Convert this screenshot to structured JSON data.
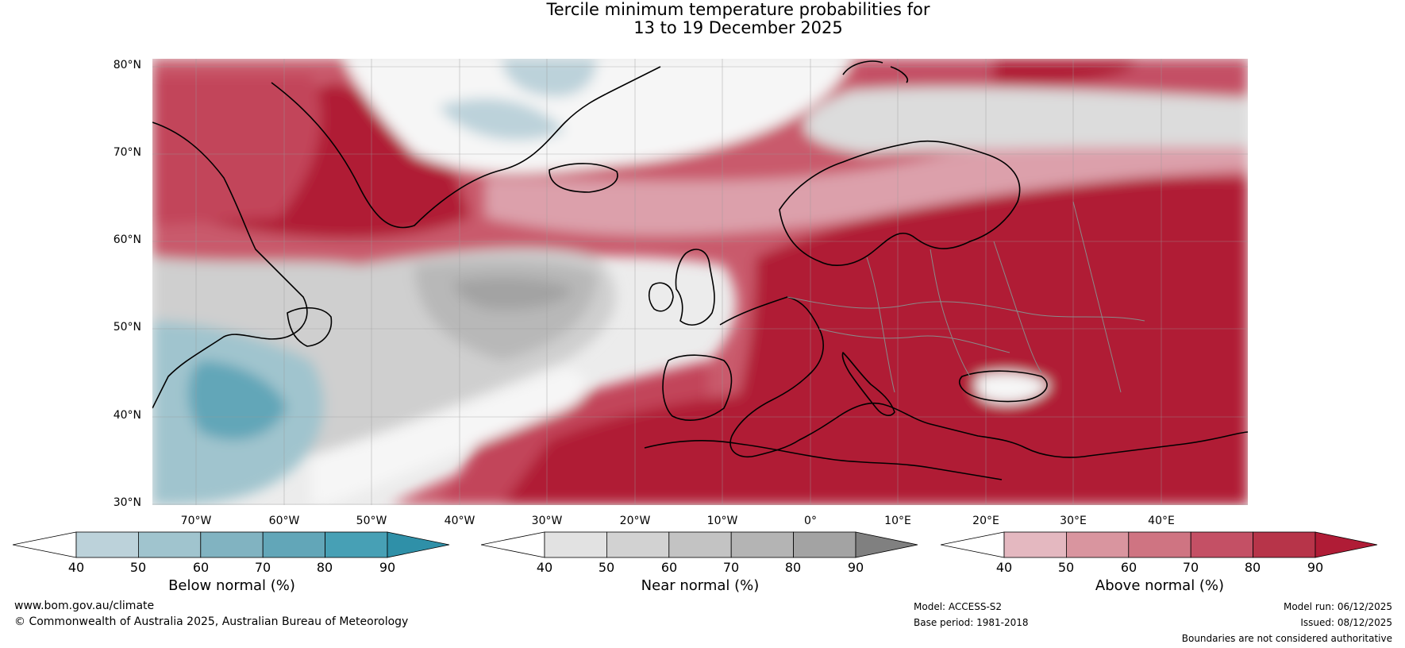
{
  "header": {
    "title_line1": "Tercile minimum temperature probabilities for",
    "title_line2": "13 to 19 December 2025"
  },
  "map": {
    "region": "North Atlantic and Europe",
    "lat_labels": [
      "80°N",
      "70°N",
      "60°N",
      "50°N",
      "40°N",
      "30°N"
    ],
    "lon_labels": [
      "70°W",
      "60°W",
      "50°W",
      "40°W",
      "30°W",
      "20°W",
      "10°W",
      "0°",
      "10°E",
      "20°E",
      "30°E",
      "40°E"
    ]
  },
  "legends": [
    {
      "title": "Below normal (%)",
      "ticks": [
        "40",
        "50",
        "60",
        "70",
        "80",
        "90"
      ],
      "colors": [
        "#ffffff",
        "#bcd2da",
        "#a0c4ce",
        "#81b3c1",
        "#62a6b8",
        "#47a0b5",
        "#2f90a8"
      ]
    },
    {
      "title": "Near normal (%)",
      "ticks": [
        "40",
        "50",
        "60",
        "70",
        "80",
        "90"
      ],
      "colors": [
        "#ffffff",
        "#e2e2e2",
        "#d2d2d2",
        "#c3c3c3",
        "#b4b4b4",
        "#a3a3a3",
        "#808080"
      ]
    },
    {
      "title": "Above normal (%)",
      "ticks": [
        "40",
        "50",
        "60",
        "70",
        "80",
        "90"
      ],
      "colors": [
        "#ffffff",
        "#e4b8c0",
        "#d9959f",
        "#cf7482",
        "#c45065",
        "#b73449",
        "#b01c36"
      ]
    }
  ],
  "footer": {
    "url": "www.bom.gov.au/climate",
    "copyright": "© Commonwealth of Australia 2025, Australian Bureau of Meteorology",
    "model": "Model: ACCESS-S2",
    "base_period": "Base period: 1981-2018",
    "model_run": "Model run: 06/12/2025",
    "issued": "Issued: 08/12/2025",
    "disclaimer": "Boundaries are not considered authoritative"
  }
}
